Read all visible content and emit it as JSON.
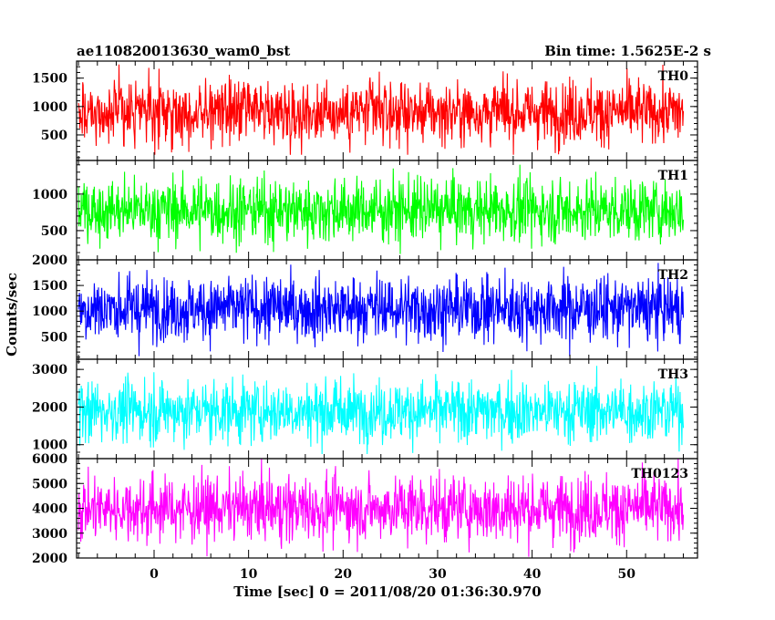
{
  "chart_data": {
    "type": "line",
    "title": "ae110820013630_wam0_bst",
    "subtitle": "Bin time: 1.5625E-2 s",
    "xlabel": "Time [sec] 0 = 2011/08/20 01:36:30.970",
    "ylabel": "Counts/sec",
    "xlim": [
      -8.2,
      57.5
    ],
    "x_data_range": [
      -8,
      56
    ],
    "xticks": [
      0,
      10,
      20,
      30,
      40,
      50
    ],
    "xtick_labels": [
      "0",
      "10",
      "20",
      "30",
      "40",
      "50"
    ],
    "panels": [
      {
        "name": "TH0",
        "color": "#ff0000",
        "ylim": [
          50,
          1800
        ],
        "yticks": [
          500,
          1000,
          1500
        ],
        "ytick_labels": [
          "500",
          "1000",
          "1500"
        ],
        "mean": 900,
        "min": 150,
        "max": 1800
      },
      {
        "name": "TH1",
        "color": "#00ff00",
        "ylim": [
          100,
          1460
        ],
        "yticks": [
          500,
          1000
        ],
        "ytick_labels": [
          "500",
          "1000"
        ],
        "mean": 780,
        "min": 180,
        "max": 1460
      },
      {
        "name": "TH2",
        "color": "#0000ff",
        "ylim": [
          60,
          2000
        ],
        "yticks": [
          500,
          1000,
          1500,
          2000
        ],
        "ytick_labels": [
          "500",
          "1000",
          "1500",
          "2000"
        ],
        "mean": 1050,
        "min": 120,
        "max": 2000
      },
      {
        "name": "TH3",
        "color": "#00ffff",
        "ylim": [
          630,
          3270
        ],
        "yticks": [
          1000,
          2000,
          3000
        ],
        "ytick_labels": [
          "1000",
          "2000",
          "3000"
        ],
        "mean": 1900,
        "min": 750,
        "max": 3200
      },
      {
        "name": "TH0123",
        "color": "#ff00ff",
        "ylim": [
          2000,
          6000
        ],
        "yticks": [
          2000,
          3000,
          4000,
          5000,
          6000
        ],
        "ytick_labels": [
          "2000",
          "3000",
          "4000",
          "5000",
          "6000"
        ],
        "mean": 4000,
        "min": 2050,
        "max": 6000
      }
    ]
  }
}
